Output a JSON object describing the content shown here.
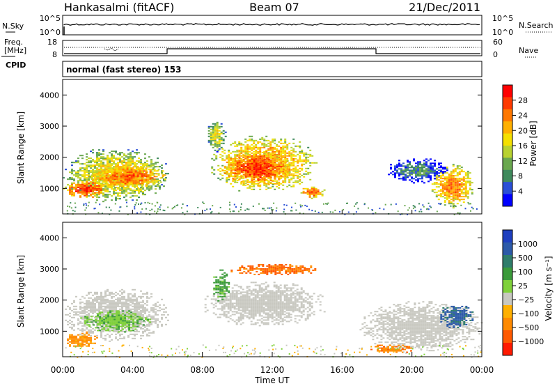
{
  "header": {
    "station": "Hankasalmi (fitACF)",
    "beam": "Beam 07",
    "date": "21/Dec/2011"
  },
  "top_panels": {
    "nsky_label": "N.Sky",
    "nsearch_label": "N.Search",
    "nsky_ticks": [
      "10^5",
      "10^0"
    ],
    "nsearch_ticks": [
      "10^5",
      "10^0"
    ],
    "freq_label_1": "Freq.",
    "freq_label_2": "[MHz]",
    "freq_ticks": [
      "18",
      "8"
    ],
    "nave_label": "Nave",
    "nave_ticks": [
      "60",
      "0"
    ],
    "cpid_label": "CPID",
    "cpid_text": "normal (fast stereo) 153"
  },
  "power_colorbar": {
    "label": "Power [dB]",
    "ticks": [
      "28",
      "24",
      "20",
      "16",
      "12",
      "8",
      "4"
    ],
    "colors": [
      "#0000ff",
      "#2a4fd6",
      "#3f8a5c",
      "#6aa84f",
      "#b8d230",
      "#f5e000",
      "#ffb000",
      "#ff7800",
      "#ff3a00",
      "#ff0000"
    ]
  },
  "velocity_colorbar": {
    "label": "Velocity [m s⁻¹]",
    "ticks": [
      "1000",
      "500",
      "100",
      "25",
      "−25",
      "−100",
      "−500",
      "−1000"
    ],
    "colors": [
      "#1e3fbf",
      "#2c5aa8",
      "#2f7d6b",
      "#3a9a3a",
      "#7fd13a",
      "#c8c8c0",
      "#ffb000",
      "#ff8a00",
      "#ff5a00",
      "#ff1a00"
    ]
  },
  "chart_data": [
    {
      "type": "heatmap",
      "title": "",
      "ylabel": "Slant Range [km]",
      "xlabel": "",
      "ylim": [
        180,
        4500
      ],
      "yticks": [
        "4000",
        "3000",
        "2000",
        "1000"
      ],
      "xlim_hours": [
        0,
        24
      ],
      "grid": false,
      "quantity": "Power [dB]",
      "regions": [
        {
          "t0": 0.0,
          "t1": 6.0,
          "r0": 600,
          "r1": 2300,
          "level": 20
        },
        {
          "t0": 0.0,
          "t1": 2.5,
          "r0": 700,
          "r1": 1300,
          "level": 28
        },
        {
          "t0": 1.5,
          "t1": 6.0,
          "r0": 1000,
          "r1": 1800,
          "level": 26
        },
        {
          "t0": 8.5,
          "t1": 14.5,
          "r0": 900,
          "r1": 2700,
          "level": 24
        },
        {
          "t0": 9.0,
          "t1": 13.0,
          "r0": 1100,
          "r1": 2200,
          "level": 28
        },
        {
          "t0": 8.2,
          "t1": 9.3,
          "r0": 2200,
          "r1": 3200,
          "level": 18
        },
        {
          "t0": 13.5,
          "t1": 15.0,
          "r0": 700,
          "r1": 1100,
          "level": 26
        },
        {
          "t0": 21.0,
          "t1": 23.5,
          "r0": 400,
          "r1": 1800,
          "level": 24
        },
        {
          "t0": 18.5,
          "t1": 22.0,
          "r0": 1200,
          "r1": 2000,
          "level": 10
        }
      ]
    },
    {
      "type": "heatmap",
      "title": "",
      "ylabel": "Slant Range [km]",
      "xlabel": "Time UT",
      "ylim": [
        180,
        4500
      ],
      "yticks": [
        "4000",
        "3000",
        "2000",
        "1000"
      ],
      "xticks": [
        "00:00",
        "04:00",
        "08:00",
        "12:00",
        "16:00",
        "20:00",
        "00:00"
      ],
      "xlim_hours": [
        0,
        24
      ],
      "grid": false,
      "quantity": "Velocity [m s⁻¹]",
      "regions": [
        {
          "t0": 0.0,
          "t1": 6.0,
          "r0": 700,
          "r1": 2400,
          "level": 0
        },
        {
          "t0": 1.0,
          "t1": 5.0,
          "r0": 1000,
          "r1": 1700,
          "level": 80
        },
        {
          "t0": 0.0,
          "t1": 2.0,
          "r0": 500,
          "r1": 1000,
          "level": -150
        },
        {
          "t0": 8.0,
          "t1": 15.0,
          "r0": 1200,
          "r1": 2600,
          "level": 0
        },
        {
          "t0": 9.5,
          "t1": 14.8,
          "r0": 2800,
          "r1": 3200,
          "level": -300
        },
        {
          "t0": 8.5,
          "t1": 9.5,
          "r0": 2000,
          "r1": 3000,
          "level": 150
        },
        {
          "t0": 17.0,
          "t1": 24.0,
          "r0": 400,
          "r1": 2000,
          "level": 0
        },
        {
          "t0": 21.5,
          "t1": 23.5,
          "r0": 1100,
          "r1": 1900,
          "level": 600
        },
        {
          "t0": 17.5,
          "t1": 20.0,
          "r0": 300,
          "r1": 600,
          "level": -200
        }
      ]
    }
  ]
}
